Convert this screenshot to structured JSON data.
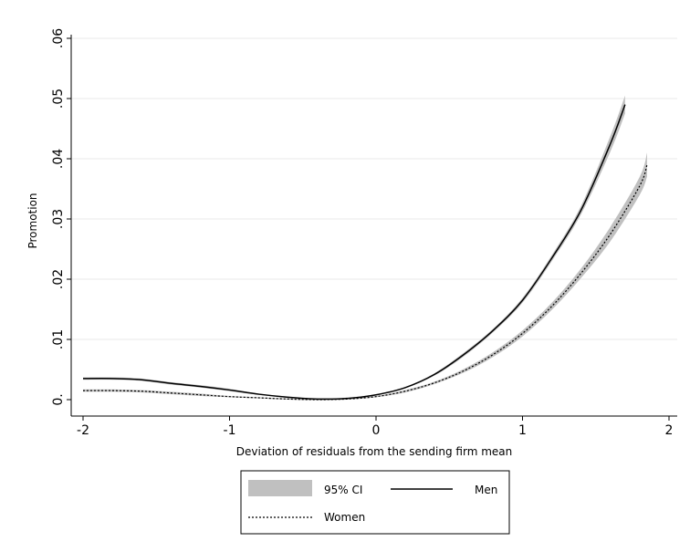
{
  "chart_data": {
    "type": "line",
    "title": "",
    "xlabel": "Deviation of residuals from the sending firm mean",
    "ylabel": "Promotion",
    "xlim": [
      -2,
      2
    ],
    "ylim": [
      0,
      0.06
    ],
    "x_ticks": [
      {
        "value": -2,
        "label": "-2"
      },
      {
        "value": -1,
        "label": "-1"
      },
      {
        "value": 0,
        "label": "0"
      },
      {
        "value": 1,
        "label": "1"
      },
      {
        "value": 2,
        "label": "2"
      }
    ],
    "y_ticks": [
      {
        "value": 0,
        "label": "0."
      },
      {
        "value": 0.01,
        "label": ".01"
      },
      {
        "value": 0.02,
        "label": ".02"
      },
      {
        "value": 0.03,
        "label": ".03"
      },
      {
        "value": 0.04,
        "label": ".04"
      },
      {
        "value": 0.05,
        "label": ".05"
      },
      {
        "value": 0.06,
        "label": ".06"
      }
    ],
    "grid": true,
    "legend_position": "bottom",
    "series": [
      {
        "name": "Men",
        "style": "solid",
        "color": "#000000",
        "x": [
          -2.0,
          -1.8,
          -1.6,
          -1.4,
          -1.2,
          -1.0,
          -0.8,
          -0.6,
          -0.4,
          -0.2,
          0.0,
          0.2,
          0.4,
          0.6,
          0.8,
          1.0,
          1.2,
          1.4,
          1.6,
          1.7
        ],
        "y": [
          0.0035,
          0.0035,
          0.0033,
          0.0027,
          0.0022,
          0.0016,
          0.0009,
          0.0004,
          0.0001,
          0.0002,
          0.0008,
          0.002,
          0.0042,
          0.0075,
          0.0115,
          0.0165,
          0.0235,
          0.0315,
          0.0425,
          0.049
        ],
        "ci_lower": [
          0.0033,
          0.0033,
          0.0031,
          0.0025,
          0.002,
          0.0014,
          0.0008,
          0.0003,
          0.0,
          0.0001,
          0.0007,
          0.0019,
          0.004,
          0.0072,
          0.0112,
          0.0161,
          0.023,
          0.0308,
          0.0412,
          0.0475
        ],
        "ci_upper": [
          0.0037,
          0.0037,
          0.0035,
          0.0029,
          0.0024,
          0.0018,
          0.001,
          0.0005,
          0.0002,
          0.0003,
          0.0009,
          0.0021,
          0.0044,
          0.0078,
          0.0118,
          0.0169,
          0.024,
          0.0322,
          0.0438,
          0.0505
        ]
      },
      {
        "name": "Women",
        "style": "dotted",
        "color": "#000000",
        "x": [
          -2.0,
          -1.8,
          -1.6,
          -1.4,
          -1.2,
          -1.0,
          -0.8,
          -0.6,
          -0.4,
          -0.2,
          0.0,
          0.2,
          0.4,
          0.6,
          0.8,
          1.0,
          1.2,
          1.4,
          1.6,
          1.8,
          1.85
        ],
        "y": [
          0.0015,
          0.0015,
          0.0014,
          0.0011,
          0.0008,
          0.0005,
          0.0003,
          0.0001,
          0.0,
          0.0001,
          0.0005,
          0.0014,
          0.0028,
          0.0048,
          0.0075,
          0.011,
          0.0155,
          0.021,
          0.0275,
          0.0355,
          0.039
        ],
        "ci_lower": [
          0.0013,
          0.0013,
          0.0012,
          0.0009,
          0.0006,
          0.0004,
          0.0002,
          0.0,
          -0.0001,
          0.0,
          0.0004,
          0.0012,
          0.0026,
          0.0045,
          0.0071,
          0.0105,
          0.0149,
          0.0202,
          0.0263,
          0.034,
          0.037
        ],
        "ci_upper": [
          0.0017,
          0.0017,
          0.0016,
          0.0013,
          0.001,
          0.0006,
          0.0004,
          0.0002,
          0.0001,
          0.0002,
          0.0006,
          0.0016,
          0.003,
          0.0051,
          0.0079,
          0.0115,
          0.0161,
          0.0218,
          0.0287,
          0.037,
          0.041
        ]
      }
    ],
    "legend": {
      "ci_label": "95% CI",
      "men_label": "Men",
      "women_label": "Women"
    },
    "colors": {
      "ci_band": "#c0c0c0",
      "grid": "#eaeaea",
      "axis": "#000000"
    }
  }
}
